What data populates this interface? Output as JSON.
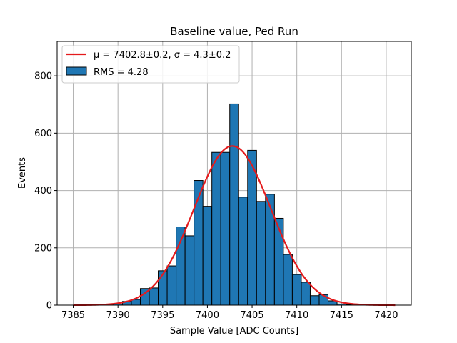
{
  "chart_data": {
    "type": "bar",
    "title": "Baseline value, Ped Run",
    "xlabel": "Sample Value [ADC Counts]",
    "ylabel": "Events",
    "xlim": [
      7383.2,
      7422.8
    ],
    "ylim": [
      0,
      920
    ],
    "xticks": [
      7385,
      7390,
      7395,
      7400,
      7405,
      7410,
      7415,
      7420
    ],
    "yticks": [
      0,
      200,
      400,
      600,
      800
    ],
    "grid": true,
    "legend_position": "top-left",
    "histogram": {
      "name": "RMS = 4.28",
      "color": "#1f77b4",
      "bin_start": 7388.5,
      "bin_width": 1,
      "counts": [
        2,
        4,
        13,
        20,
        58,
        60,
        120,
        137,
        273,
        242,
        435,
        345,
        533,
        533,
        702,
        377,
        540,
        362,
        387,
        303,
        177,
        107,
        80,
        33,
        37,
        15,
        4,
        2
      ]
    },
    "fit": {
      "name": "μ = 7402.8±0.2, σ = 4.3±0.2",
      "color": "#e41a1c",
      "mu": 7402.8,
      "sigma": 4.3,
      "amplitude": 555,
      "x_range": [
        7385,
        7421
      ]
    }
  }
}
